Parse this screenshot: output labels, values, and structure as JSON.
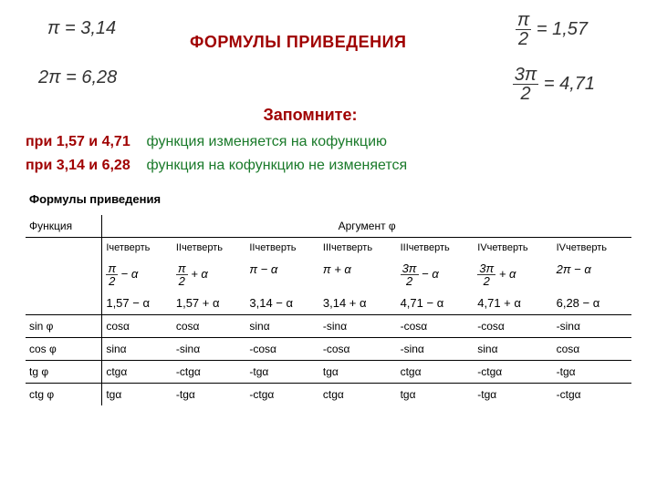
{
  "constants": {
    "pi": "π = 3,14",
    "two_pi": "2π = 6,28",
    "pi_over_2": "= 1,57",
    "three_pi_over_2": "= 4,71",
    "pi_over_2_num": "π",
    "pi_over_2_den": "2",
    "three_pi_over_2_num": "3π",
    "three_pi_over_2_den": "2"
  },
  "title": "ФОРМУЛЫ ПРИВЕДЕНИЯ",
  "subtitle": "Запомните:",
  "rules": [
    {
      "prefix": "при 1,57 и 4,71",
      "text": "функция изменяется на кофункцию"
    },
    {
      "prefix": "при 3,14 и 6,28",
      "text": "функция на кофункцию не изменяется"
    }
  ],
  "table_title": "Формулы приведения",
  "table": {
    "func_header": "Функция",
    "arg_header": "Аргумент φ",
    "quarters": [
      "Iчетверть",
      "IIчетверть",
      "IIчетверть",
      "IIIчетверть",
      "IIIчетверть",
      "IVчетверть",
      "IVчетверть"
    ],
    "arg_exprs": [
      {
        "frac_num": "π",
        "frac_den": "2",
        "tail": " − α"
      },
      {
        "frac_num": "π",
        "frac_den": "2",
        "tail": " + α"
      },
      {
        "plain": "π − α"
      },
      {
        "plain": "π + α"
      },
      {
        "frac_num": "3π",
        "frac_den": "2",
        "tail": " − α"
      },
      {
        "frac_num": "3π",
        "frac_den": "2",
        "tail": " + α"
      },
      {
        "plain": "2π − α"
      }
    ],
    "arg_nums": [
      "1,57 − α",
      "1,57 + α",
      "3,14 − α",
      "3,14 + α",
      "4,71 − α",
      "4,71 + α",
      "6,28 − α"
    ],
    "rows": [
      {
        "fn": "sin φ",
        "vals": [
          "cosα",
          "cosα",
          "sinα",
          "-sinα",
          "-cosα",
          "-cosα",
          "-sinα"
        ]
      },
      {
        "fn": "cos φ",
        "vals": [
          "sinα",
          "-sinα",
          "-cosα",
          "-cosα",
          "-sinα",
          "sinα",
          "cosα"
        ]
      },
      {
        "fn": "tg φ",
        "vals": [
          "ctgα",
          "-ctgα",
          "-tgα",
          "tgα",
          "ctgα",
          "-ctgα",
          "-tgα"
        ]
      },
      {
        "fn": "ctg φ",
        "vals": [
          "tgα",
          "-tgα",
          "-ctgα",
          "ctgα",
          "tgα",
          "-tgα",
          "-ctgα"
        ]
      }
    ]
  },
  "colors": {
    "red": "#a00000",
    "green": "#1a7a2a",
    "text": "#000000"
  }
}
